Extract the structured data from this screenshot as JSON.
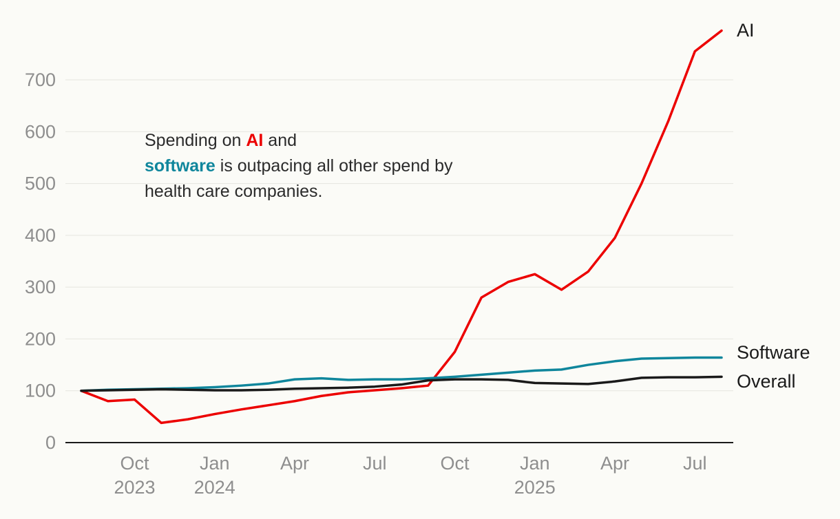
{
  "annotation": {
    "part1": "Spending on ",
    "ai_label": "AI",
    "part2": " and",
    "software_label": "software",
    "part3": " is outpacing all other spend by",
    "part4": "health care companies."
  },
  "chart_data": {
    "type": "line",
    "title": "Spending on AI and software is outpacing all other spend by health care companies.",
    "x_unit": "month",
    "x": [
      "Aug 2023",
      "Sep 2023",
      "Oct 2023",
      "Nov 2023",
      "Dec 2023",
      "Jan 2024",
      "Feb 2024",
      "Mar 2024",
      "Apr 2024",
      "May 2024",
      "Jun 2024",
      "Jul 2024",
      "Aug 2024",
      "Sep 2024",
      "Oct 2024",
      "Nov 2024",
      "Dec 2024",
      "Jan 2025",
      "Feb 2025",
      "Mar 2025",
      "Apr 2025",
      "May 2025",
      "Jun 2025",
      "Jul 2025",
      "Aug 2025"
    ],
    "x_ticks": [
      {
        "label": "Oct",
        "year": "2023",
        "index": 2
      },
      {
        "label": "Jan",
        "year": "2024",
        "index": 5
      },
      {
        "label": "Apr",
        "year": "",
        "index": 8
      },
      {
        "label": "Jul",
        "year": "",
        "index": 11
      },
      {
        "label": "Oct",
        "year": "",
        "index": 14
      },
      {
        "label": "Jan",
        "year": "2025",
        "index": 17
      },
      {
        "label": "Apr",
        "year": "",
        "index": 20
      },
      {
        "label": "Jul",
        "year": "",
        "index": 23
      }
    ],
    "y_ticks": [
      0,
      100,
      200,
      300,
      400,
      500,
      600,
      700
    ],
    "ylim": [
      0,
      800
    ],
    "grid": "horizontal",
    "legend_position": "right-end-labels",
    "series": [
      {
        "name": "AI",
        "color": "#ec0000",
        "values": [
          100,
          80,
          83,
          38,
          45,
          55,
          64,
          72,
          80,
          90,
          97,
          101,
          105,
          110,
          175,
          280,
          310,
          325,
          295,
          330,
          395,
          500,
          620,
          755,
          795
        ]
      },
      {
        "name": "Software",
        "color": "#0f869c",
        "values": [
          100,
          102,
          103,
          104,
          105,
          107,
          110,
          114,
          122,
          124,
          121,
          122,
          122,
          124,
          127,
          131,
          135,
          139,
          141,
          150,
          157,
          162,
          163,
          164,
          164
        ]
      },
      {
        "name": "Overall",
        "color": "#1a1a1a",
        "values": [
          100,
          101,
          102,
          103,
          102,
          101,
          101,
          102,
          104,
          105,
          106,
          108,
          112,
          120,
          122,
          122,
          121,
          115,
          114,
          113,
          118,
          125,
          126,
          126,
          127
        ]
      }
    ],
    "colors": {
      "grid": "#e5e5df",
      "axis_text": "#8e8e8e",
      "axis_line": "#1a1a1a",
      "background": "#fbfbf7"
    }
  }
}
